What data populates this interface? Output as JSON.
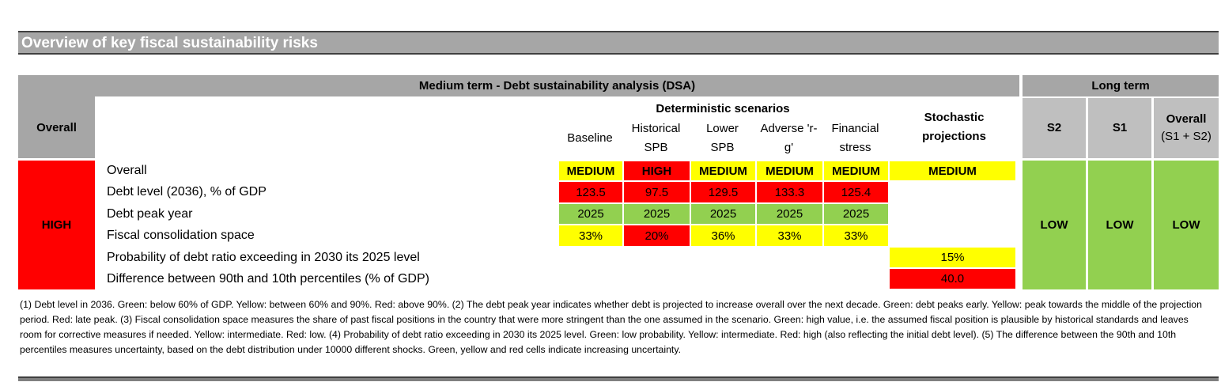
{
  "header": {
    "title": "Overview of key fiscal sustainability risks"
  },
  "table": {
    "overall_label": "Overall",
    "overall_value": {
      "text": "HIGH",
      "color": "#ff0000"
    },
    "medium_term": "Medium term - Debt sustainability analysis (DSA)",
    "long_term": "Long term",
    "deterministic": "Deterministic scenarios",
    "columns": [
      "Baseline",
      "Historical SPB",
      "Lower SPB",
      "Adverse 'r-g'",
      "Financial stress",
      "Stochastic projections"
    ],
    "long_columns": [
      {
        "name": "S2"
      },
      {
        "name": "S1"
      },
      {
        "name": "Overall",
        "note": "(S1 + S2)"
      }
    ],
    "long_values": [
      {
        "text": "LOW",
        "color": "#92d050"
      },
      {
        "text": "LOW",
        "color": "#92d050"
      },
      {
        "text": "LOW",
        "color": "#92d050"
      }
    ],
    "rows": [
      {
        "label": "Overall",
        "cells": [
          {
            "text": "MEDIUM",
            "color": "#ffff00"
          },
          {
            "text": "HIGH",
            "color": "#ff0000"
          },
          {
            "text": "MEDIUM",
            "color": "#ffff00"
          },
          {
            "text": "MEDIUM",
            "color": "#ffff00"
          },
          {
            "text": "MEDIUM",
            "color": "#ffff00"
          },
          {
            "text": "MEDIUM",
            "color": "#ffff00"
          }
        ]
      },
      {
        "label": "Debt level (2036), % of GDP",
        "cells": [
          {
            "text": "123.5",
            "color": "#ff0000"
          },
          {
            "text": "97.5",
            "color": "#ff0000"
          },
          {
            "text": "129.5",
            "color": "#ff0000"
          },
          {
            "text": "133.3",
            "color": "#ff0000"
          },
          {
            "text": "125.4",
            "color": "#ff0000"
          },
          null
        ]
      },
      {
        "label": "Debt peak year",
        "cells": [
          {
            "text": "2025",
            "color": "#92d050"
          },
          {
            "text": "2025",
            "color": "#92d050"
          },
          {
            "text": "2025",
            "color": "#92d050"
          },
          {
            "text": "2025",
            "color": "#92d050"
          },
          {
            "text": "2025",
            "color": "#92d050"
          },
          null
        ]
      },
      {
        "label": "Fiscal consolidation space",
        "cells": [
          {
            "text": "33%",
            "color": "#ffff00"
          },
          {
            "text": "20%",
            "color": "#ff0000"
          },
          {
            "text": "36%",
            "color": "#ffff00"
          },
          {
            "text": "33%",
            "color": "#ffff00"
          },
          {
            "text": "33%",
            "color": "#ffff00"
          },
          null
        ]
      },
      {
        "label": "Probability of debt ratio exceeding in 2030 its 2025 level",
        "cells": [
          null,
          null,
          null,
          null,
          null,
          {
            "text": "15%",
            "color": "#ffff00"
          }
        ]
      },
      {
        "label": "Difference between 90th and 10th percentiles (% of GDP)",
        "cells": [
          null,
          null,
          null,
          null,
          null,
          {
            "text": "40.0",
            "color": "#ff0000"
          }
        ]
      }
    ]
  },
  "footnote": "(1) Debt level in 2036. Green: below 60% of GDP. Yellow: between 60% and 90%. Red: above 90%. (2) The debt peak year indicates whether debt is projected to increase overall over the next decade. Green: debt peaks early. Yellow: peak towards the middle of the projection period. Red: late peak. (3) Fiscal consolidation space measures the share of past fiscal positions in the country that were more stringent than the one assumed in the scenario.  Green: high value, i.e. the assumed fiscal position is plausible by historical standards and leaves room for corrective measures if needed. Yellow: intermediate. Red: low. (4) Probability of debt ratio exceeding in 2030 its 2025 level. Green: low probability. Yellow: intermediate. Red: high (also reflecting the initial debt level). (5) The difference between the 90th and 10th percentiles measures uncertainty, based on the debt distribution under 10000 different shocks. Green, yellow and red cells indicate increasing uncertainty."
}
